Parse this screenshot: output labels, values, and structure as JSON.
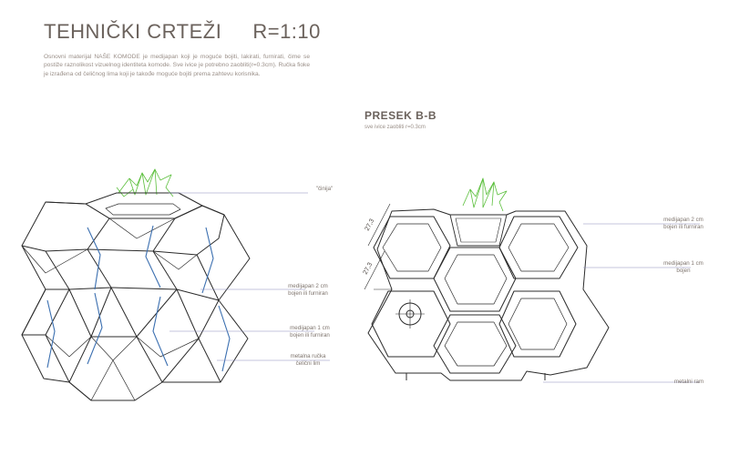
{
  "header": {
    "title": "TEHNIČKI CRTEŽI",
    "scale": "R=1:10"
  },
  "intro_text": "Osnovni materijal NAŠE KOMODE je medijapan koji je moguće bojiti, lakirati, furnirati, čime se postiže raznolikost vizuelnog identiteta komode. Sve ivice je potrebno zaobliti(r=0.3cm). Ručka fioke je izrađena od čeličnog lima koji je takođe moguće bojiti prema zahtevu korisnika.",
  "section": {
    "title": "PRESEK B-B",
    "subtitle": "sve ivice zaobliti r=0.3cm"
  },
  "left_labels": {
    "pot": "\"činija\"",
    "mdf2_line1": "medijapan 2 cm",
    "mdf2_line2": "bojen ili furniran",
    "mdf1_line1": "medijapan 1 cm",
    "mdf1_line2": "bojen ili furniran",
    "handle_line1": "metalna ručka",
    "handle_line2": "čelični lim"
  },
  "right_labels": {
    "mdf2_line1": "medijapan 2 cm",
    "mdf2_line2": "bojen ili furniran",
    "mdf1_line1": "medijapan 1 cm",
    "mdf1_line2": "bojen",
    "frame": "metalni ram"
  },
  "dimensions": {
    "upper": "27,3",
    "lower": "27,3"
  },
  "colors": {
    "line": "#2b2b2b",
    "accent": "#3b6fb0",
    "plant": "#5bbf3c",
    "leader": "#8a8dbd"
  }
}
